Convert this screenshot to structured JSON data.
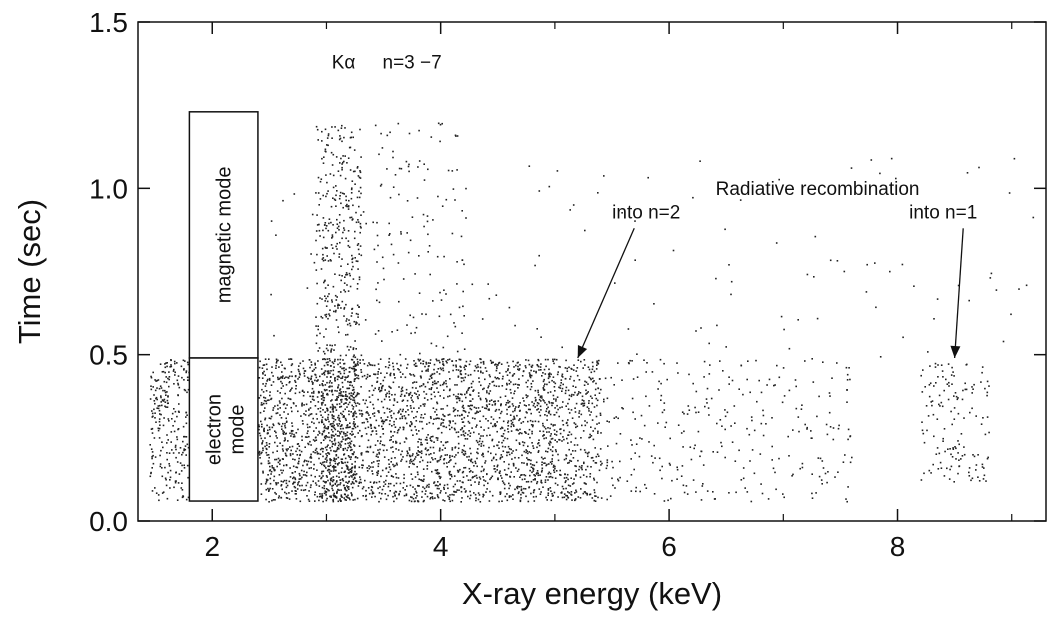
{
  "chart_data": {
    "type": "scatter",
    "title": "",
    "xlabel": "X-ray energy (keV)",
    "ylabel": "Time (sec)",
    "xlim": [
      1.35,
      9.3
    ],
    "ylim": [
      0.0,
      1.5
    ],
    "x_ticks": [
      {
        "value": 2,
        "label": "2"
      },
      {
        "value": 4,
        "label": "4"
      },
      {
        "value": 6,
        "label": "6"
      },
      {
        "value": 8,
        "label": "8"
      }
    ],
    "x_minor_ticks": [
      3,
      5,
      7,
      9
    ],
    "y_ticks": [
      {
        "value": 0.0,
        "label": "0.0"
      },
      {
        "value": 0.5,
        "label": "0.5"
      },
      {
        "value": 1.0,
        "label": "1.0"
      },
      {
        "value": 1.5,
        "label": "1.5"
      }
    ],
    "grid": false,
    "marker_color": "#222222",
    "mode_boxes": [
      {
        "label": "magnetic mode",
        "x_range": [
          1.8,
          2.4
        ],
        "y_range": [
          0.49,
          1.23
        ]
      },
      {
        "label": "electron mode",
        "x_range": [
          1.8,
          2.4
        ],
        "y_range": [
          0.06,
          0.49
        ]
      }
    ],
    "density_regions": [
      {
        "description": "dense electron-mode continuum",
        "x_range": [
          2.4,
          5.05
        ],
        "y_range": [
          0.06,
          0.49
        ],
        "density": 0.85
      },
      {
        "description": "K-alpha line (electron mode)",
        "x_range": [
          2.95,
          3.25
        ],
        "y_range": [
          0.06,
          0.49
        ],
        "density": 1.0
      },
      {
        "description": "recombination edge n=2",
        "x_range": [
          5.05,
          5.4
        ],
        "y_range": [
          0.06,
          0.49
        ],
        "density": 0.7
      },
      {
        "description": "low energy band",
        "x_range": [
          1.45,
          1.8
        ],
        "y_range": [
          0.06,
          0.49
        ],
        "density": 0.6
      },
      {
        "description": "K-alpha line (magnetic mode)",
        "x_range": [
          2.9,
          3.3
        ],
        "y_range": [
          0.49,
          1.2
        ],
        "density": 0.45
      },
      {
        "description": "n=3-7 lines (magnetic mode)",
        "x_range": [
          3.4,
          4.2
        ],
        "y_range": [
          0.49,
          1.2
        ],
        "density": 0.08
      },
      {
        "description": "sparse high energy tail",
        "x_range": [
          5.4,
          7.6
        ],
        "y_range": [
          0.06,
          0.49
        ],
        "density": 0.12
      },
      {
        "description": "recombination into n=1",
        "x_range": [
          8.2,
          8.8
        ],
        "y_range": [
          0.12,
          0.48
        ],
        "density": 0.25
      },
      {
        "description": "scattered background",
        "x_range": [
          2.4,
          9.2
        ],
        "y_range": [
          0.49,
          1.1
        ],
        "density": 0.01
      }
    ],
    "annotations": [
      {
        "text": "Kα",
        "x": 3.15,
        "y": 1.36
      },
      {
        "text": "n=3 −7",
        "x": 3.75,
        "y": 1.36
      },
      {
        "text": "Radiative recombination",
        "x": 7.3,
        "y": 0.98
      },
      {
        "text": "into n=2",
        "x": 5.8,
        "y": 0.91,
        "arrow_to": [
          5.2,
          0.49
        ]
      },
      {
        "text": "into n=1",
        "x": 8.4,
        "y": 0.91,
        "arrow_to": [
          8.5,
          0.49
        ]
      }
    ]
  }
}
